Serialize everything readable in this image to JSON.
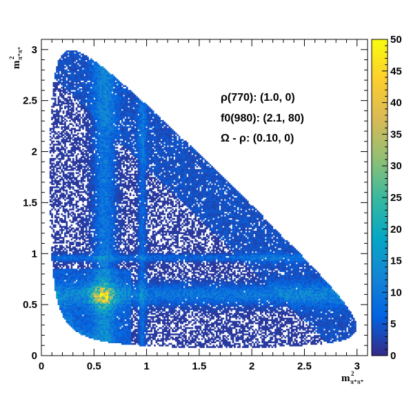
{
  "chart_data": {
    "type": "heatmap",
    "title": "",
    "xlabel": {
      "base": "m",
      "sup": "2",
      "sub": "π⁺π⁺"
    },
    "ylabel": {
      "base": "m",
      "sup": "2",
      "sub": "π⁺π⁺"
    },
    "xlim": [
      0,
      3.1
    ],
    "ylim": [
      0,
      3.1
    ],
    "x_ticks": [
      "0",
      "0.5",
      "1",
      "1.5",
      "2",
      "2.5",
      "3"
    ],
    "x_tick_values": [
      0,
      0.5,
      1,
      1.5,
      2,
      2.5,
      3
    ],
    "y_ticks": [
      "0",
      "0.5",
      "1",
      "1.5",
      "2",
      "2.5",
      "3"
    ],
    "y_tick_values": [
      0,
      0.5,
      1,
      1.5,
      2,
      2.5,
      3
    ],
    "colorbar": {
      "range": [
        0,
        50
      ],
      "ticks": [
        "0",
        "5",
        "10",
        "15",
        "20",
        "25",
        "30",
        "35",
        "40",
        "45",
        "50"
      ],
      "palette": "parula",
      "colors": [
        "#352a87",
        "#0363e1",
        "#1485d4",
        "#06a7c6",
        "#38b99e",
        "#92bf73",
        "#d9ba56",
        "#fcce2e",
        "#f9fb0e"
      ]
    },
    "annotations": [
      "ρ(770): (1.0, 0)",
      "f0(980): (2.1, 80)",
      "Ω -  ρ: (0.10, 0)"
    ],
    "features": {
      "rho_band_mass_sq": 0.6,
      "f0_band_mass_sq": 0.96,
      "peak_region": [
        0.58,
        0.58
      ],
      "peak_density": 35
    }
  }
}
